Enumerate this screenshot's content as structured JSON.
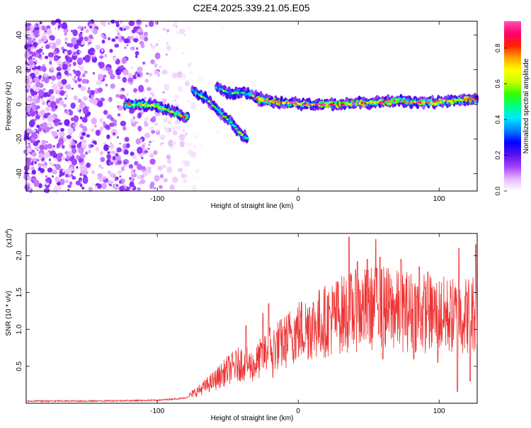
{
  "title": "C2E4.2025.339.21.05.E05",
  "chart_data": [
    {
      "type": "heatmap",
      "title": "C2E4.2025.339.21.05.E05",
      "xlabel": "Height of straight line (km)",
      "ylabel": "Frequency (Hz)",
      "xlim": [
        -193,
        127
      ],
      "ylim": [
        -50,
        48
      ],
      "x_ticks": [
        -100,
        0,
        100
      ],
      "x_tick_labels": [
        "-100",
        "0",
        "100"
      ],
      "y_ticks": [
        -40,
        -20,
        0,
        20,
        40
      ],
      "y_tick_labels": [
        "-40",
        "-20",
        "0",
        "20",
        "40"
      ],
      "grid": false,
      "colorbar": {
        "label": "Normalized spectral amplitude",
        "range": [
          0,
          0.95
        ],
        "ticks": [
          0.0,
          0.2,
          0.4,
          0.6,
          0.8
        ],
        "tick_labels": [
          "0.0",
          "0.2",
          "0.4",
          "0.6",
          "0.8"
        ],
        "colors": [
          "#ffffff",
          "#e8b8ff",
          "#a040ff",
          "#5a10ee",
          "#0000ff",
          "#0080ff",
          "#00e8ff",
          "#00ff80",
          "#30ff00",
          "#c8ff00",
          "#ffff00",
          "#ffa000",
          "#ff2000",
          "#ff0070",
          "#ff50b0"
        ]
      },
      "features": [
        {
          "name": "noise region",
          "x_range": [
            -193,
            -77
          ],
          "freq_range": [
            -50,
            48
          ],
          "amplitude": 0.12
        },
        {
          "name": "branch A",
          "points": [
            [
              -123,
              0
            ],
            [
              -110,
              0
            ],
            [
              -100,
              -1
            ],
            [
              -90,
              -4
            ],
            [
              -78,
              -8
            ]
          ],
          "amplitude": 0.6
        },
        {
          "name": "branch B",
          "points": [
            [
              -75,
              8
            ],
            [
              -65,
              3
            ],
            [
              -55,
              -5
            ],
            [
              -48,
              -10
            ],
            [
              -42,
              -16
            ],
            [
              -36,
              -20
            ]
          ],
          "amplitude": 0.45
        },
        {
          "name": "branch C",
          "points": [
            [
              -58,
              10
            ],
            [
              -48,
              6
            ],
            [
              -40,
              7
            ],
            [
              -32,
              5
            ],
            [
              -25,
              4
            ]
          ],
          "amplitude": 0.45
        },
        {
          "name": "main ridge",
          "points": [
            [
              -30,
              3
            ],
            [
              -10,
              1
            ],
            [
              10,
              0
            ],
            [
              30,
              0
            ],
            [
              50,
              1
            ],
            [
              70,
              2
            ],
            [
              90,
              1
            ],
            [
              110,
              2
            ],
            [
              127,
              3
            ]
          ],
          "amplitude": 0.75
        }
      ]
    },
    {
      "type": "line",
      "xlabel": "Height of straight line (km)",
      "ylabel": "SNR (10 * v/v)",
      "y_multiplier_label": "(x10",
      "y_multiplier_exp": "4",
      "y_multiplier_close": ")",
      "xlim": [
        -193,
        127
      ],
      "ylim": [
        0,
        2.3
      ],
      "x_ticks": [
        -100,
        0,
        100
      ],
      "x_tick_labels": [
        "-100",
        "0",
        "100"
      ],
      "y_ticks": [
        0.5,
        1.0,
        1.5,
        2.0
      ],
      "y_tick_labels": [
        "0.5",
        "1.0",
        "1.5",
        "2.0"
      ],
      "grid": false,
      "series": [
        {
          "name": "SNR",
          "color": "#ee3333",
          "envelope_x": [
            -193,
            -150,
            -100,
            -80,
            -70,
            -60,
            -50,
            -40,
            -32,
            -25,
            -20,
            -15,
            -10,
            -5,
            0,
            10,
            20,
            30,
            40,
            50,
            60,
            70,
            80,
            90,
            100,
            110,
            120,
            127
          ],
          "envelope_y": [
            0.03,
            0.03,
            0.04,
            0.07,
            0.18,
            0.3,
            0.45,
            0.55,
            0.5,
            0.65,
            0.75,
            0.78,
            0.82,
            0.92,
            0.98,
            1.05,
            1.12,
            1.2,
            1.25,
            1.28,
            1.3,
            1.25,
            1.25,
            1.22,
            1.2,
            1.18,
            1.2,
            1.25
          ],
          "peak_points": [
            [
              -37,
              1.05
            ],
            [
              -25,
              1.22
            ],
            [
              -21,
              1.35
            ],
            [
              -5,
              0.95
            ],
            [
              8,
              1.3
            ],
            [
              28,
              1.62
            ],
            [
              36,
              2.25
            ],
            [
              42,
              1.92
            ],
            [
              49,
              1.95
            ],
            [
              55,
              2.22
            ],
            [
              58,
              1.98
            ],
            [
              73,
              1.95
            ],
            [
              86,
              1.85
            ],
            [
              92,
              1.78
            ],
            [
              114,
              2.1
            ],
            [
              126,
              2.15
            ]
          ],
          "dip_points": [
            [
              -18,
              0.35
            ],
            [
              60,
              0.6
            ],
            [
              82,
              0.6
            ],
            [
              99,
              0.55
            ],
            [
              113,
              0.16
            ],
            [
              122,
              0.3
            ]
          ]
        }
      ]
    }
  ]
}
